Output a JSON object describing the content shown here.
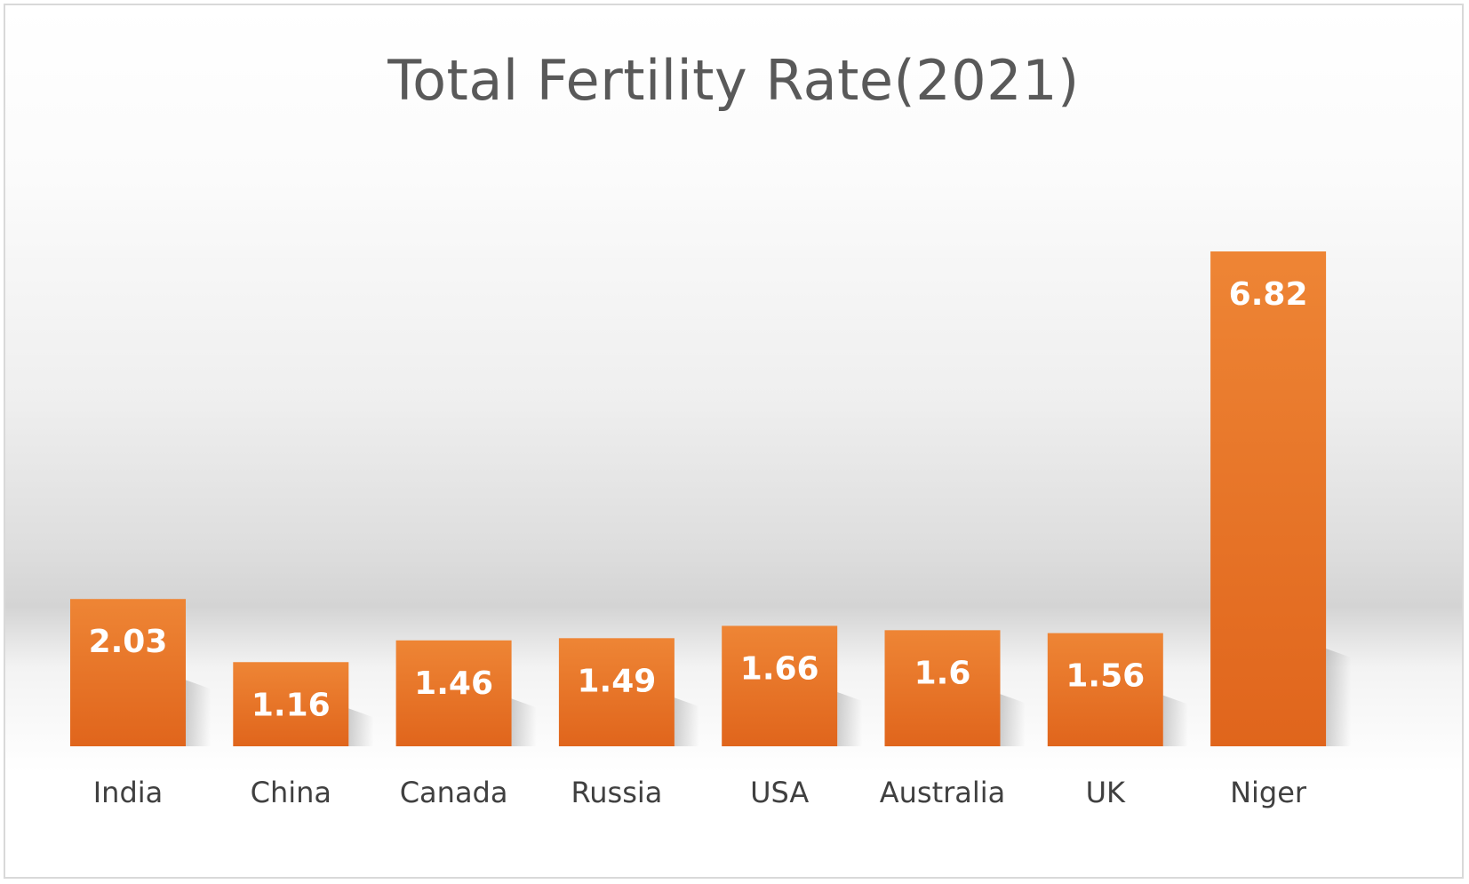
{
  "chart_data": {
    "type": "bar",
    "title": "Total Fertility Rate(2021)",
    "xlabel": "",
    "ylabel": "",
    "categories": [
      "India",
      "China",
      "Canada",
      "Russia",
      "USA",
      "Australia",
      "UK",
      "Niger"
    ],
    "values": [
      2.03,
      1.16,
      1.46,
      1.49,
      1.66,
      1.6,
      1.56,
      6.82
    ],
    "value_labels": [
      "2.03",
      "1.16",
      "1.46",
      "1.49",
      "1.66",
      "1.6",
      "1.56",
      "6.82"
    ],
    "ylim": [
      0,
      6.82
    ],
    "grid": false,
    "legend": "none",
    "colors": {
      "bar_top": "#ee8535",
      "bar_bottom": "#e0651c",
      "title": "#595959",
      "category_text": "#404040",
      "value_text": "#ffffff"
    }
  }
}
